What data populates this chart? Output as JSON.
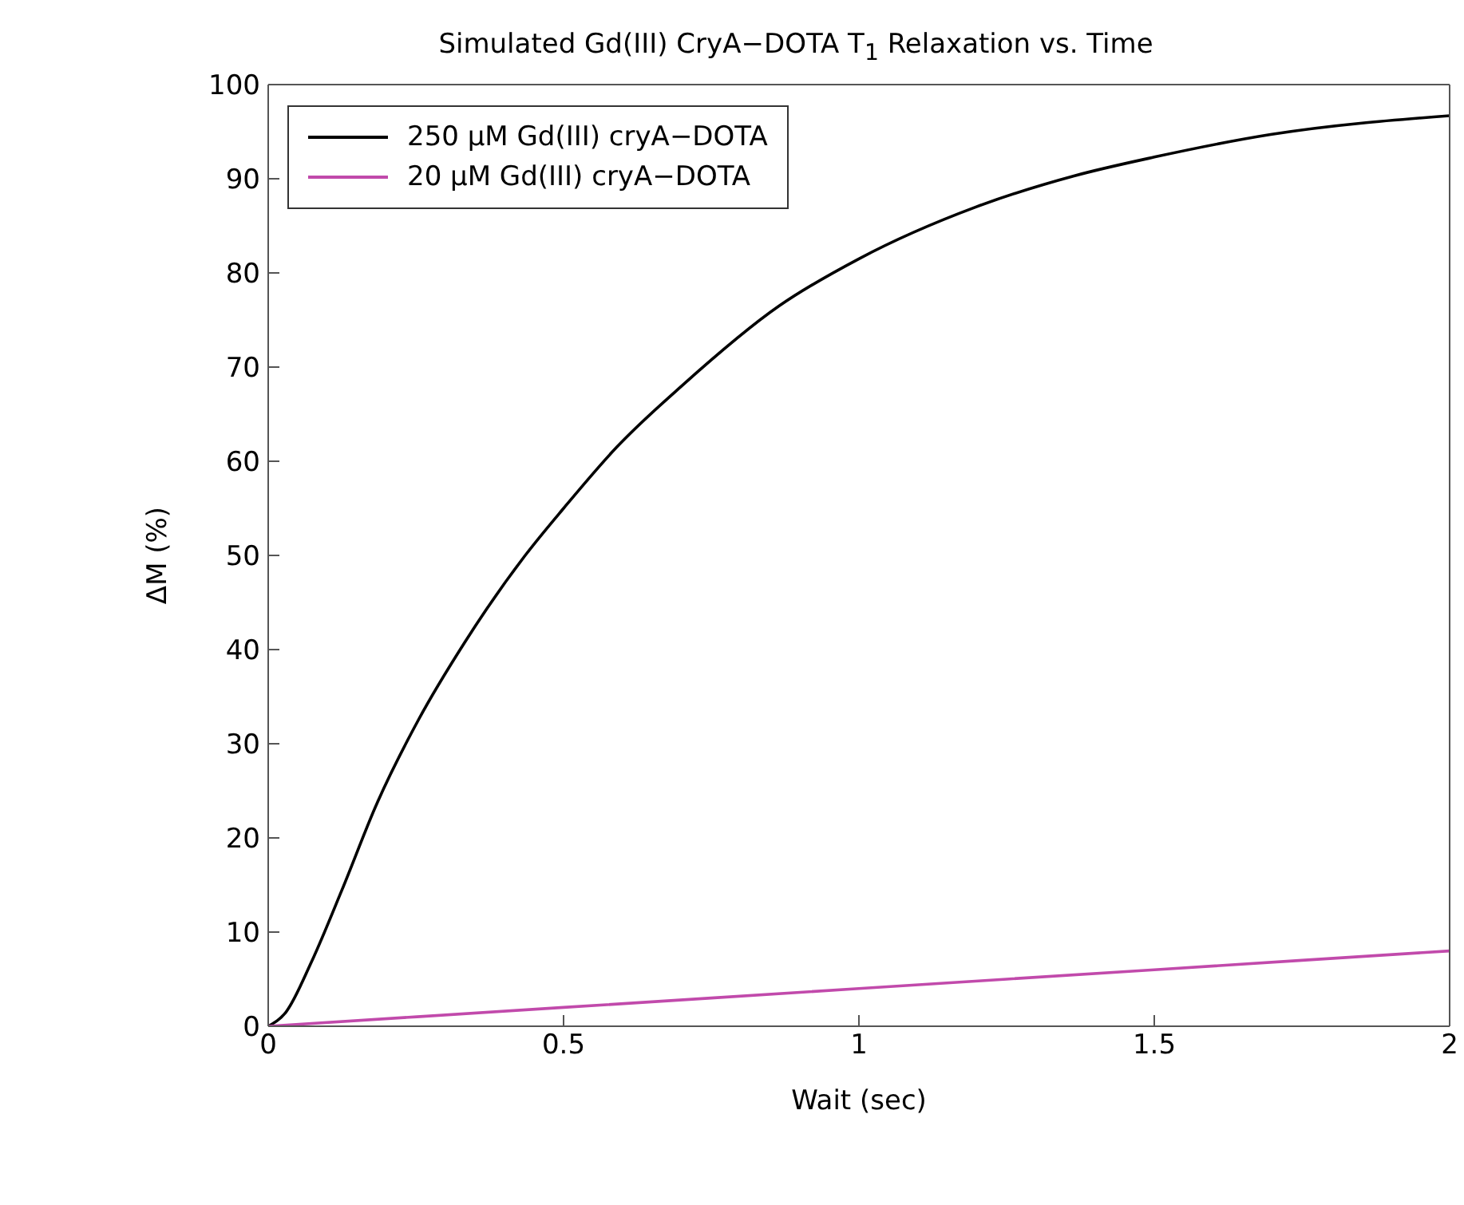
{
  "chart_data": {
    "type": "line",
    "title": "Simulated Gd(III) CryA−DOTA T$_{1}$ Relaxation vs. Time",
    "xlabel": "Wait (sec)",
    "ylabel": "ΔM (%)",
    "xlim": [
      0,
      2
    ],
    "xticks": [
      0,
      0.5,
      1,
      1.5,
      2
    ],
    "ylim": [
      0,
      100
    ],
    "yticks": [
      0,
      10,
      20,
      30,
      40,
      50,
      60,
      70,
      80,
      90,
      100
    ],
    "legend": "top left",
    "marker": "none",
    "line_style": "solid",
    "series": [
      {
        "name": "250 μM Gd(III) cryA−DOTA",
        "color": "#000000",
        "x": [
          0,
          0.03,
          0.073,
          0.125,
          0.185,
          0.254,
          0.332,
          0.435,
          0.5,
          0.59,
          0.7,
          0.865,
          1,
          1.198,
          1.364,
          1.5,
          1.697,
          2
        ],
        "values": [
          0,
          1.5,
          6.8,
          14.5,
          23.8,
          32.5,
          40.7,
          50,
          55,
          61.5,
          68,
          76.5,
          81.5,
          87,
          90.3,
          92.3,
          94.7,
          96.7
        ]
      },
      {
        "name": "20 μM Gd(III) cryA−DOTA",
        "color": "#c14aab",
        "x": [
          0,
          0.5,
          1,
          1.5,
          2
        ],
        "values": [
          0,
          2,
          4,
          6,
          8
        ]
      }
    ]
  }
}
